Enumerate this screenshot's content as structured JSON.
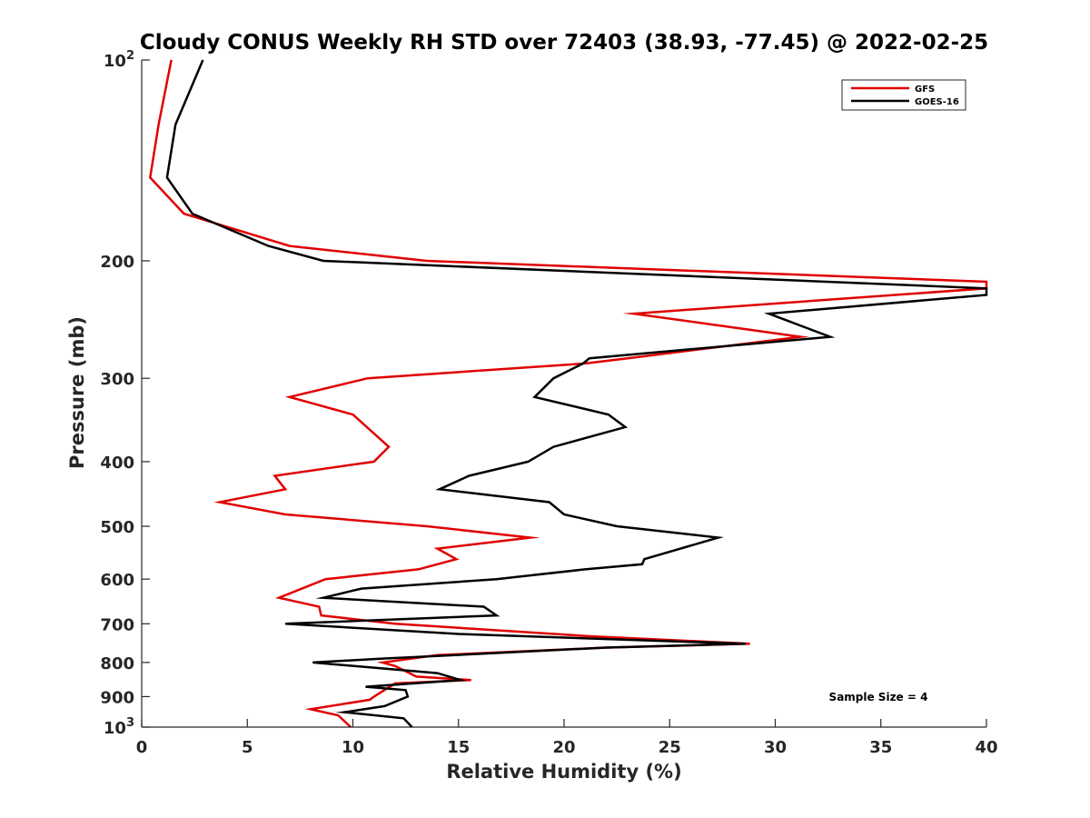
{
  "title": "Cloudy CONUS Weekly RH STD over 72403 (38.93, -77.45) @ 2022-02-25",
  "annotation": "Sample Size = 4",
  "chart_data": {
    "type": "line",
    "xlabel": "Relative Humidity (%)",
    "ylabel": "Pressure (mb)",
    "xlim": [
      0,
      40
    ],
    "ylim": [
      100,
      1000
    ],
    "yscale": "log",
    "y_reversed": true,
    "grid": false,
    "legend_position": "top-right",
    "xticks": [
      0,
      5,
      10,
      15,
      20,
      25,
      30,
      35,
      40
    ],
    "xtick_labels": [
      "0",
      "5",
      "10",
      "15",
      "20",
      "25",
      "30",
      "35",
      "40"
    ],
    "yticks": [
      100,
      200,
      300,
      400,
      500,
      600,
      700,
      800,
      900,
      1000
    ],
    "ytick_labels": [
      {
        "base": "10",
        "exp": "2"
      },
      {
        "base": "200",
        "exp": ""
      },
      {
        "base": "300",
        "exp": ""
      },
      {
        "base": "400",
        "exp": ""
      },
      {
        "base": "500",
        "exp": ""
      },
      {
        "base": "600",
        "exp": ""
      },
      {
        "base": "700",
        "exp": ""
      },
      {
        "base": "800",
        "exp": ""
      },
      {
        "base": "900",
        "exp": ""
      },
      {
        "base": "10",
        "exp": "3"
      }
    ],
    "series": [
      {
        "name": "GFS",
        "color": "#e00000",
        "points": [
          [
            1.4,
            100
          ],
          [
            0.8,
            125
          ],
          [
            0.4,
            150
          ],
          [
            2.0,
            170
          ],
          [
            7.0,
            190
          ],
          [
            13.5,
            200
          ],
          [
            40.0,
            215
          ],
          [
            40.0,
            220
          ],
          [
            23.3,
            240
          ],
          [
            31.2,
            260
          ],
          [
            23.0,
            280
          ],
          [
            21.0,
            285
          ],
          [
            10.7,
            300
          ],
          [
            7.0,
            320
          ],
          [
            10.0,
            340
          ],
          [
            11.7,
            380
          ],
          [
            11.0,
            400
          ],
          [
            6.3,
            420
          ],
          [
            6.8,
            440
          ],
          [
            3.7,
            460
          ],
          [
            6.8,
            480
          ],
          [
            13.5,
            500
          ],
          [
            18.4,
            520
          ],
          [
            14.0,
            540
          ],
          [
            14.9,
            560
          ],
          [
            13.1,
            580
          ],
          [
            8.7,
            600
          ],
          [
            6.5,
            640
          ],
          [
            8.4,
            660
          ],
          [
            8.5,
            680
          ],
          [
            12.0,
            700
          ],
          [
            21.0,
            730
          ],
          [
            28.8,
            750
          ],
          [
            22.0,
            760
          ],
          [
            14.0,
            780
          ],
          [
            11.4,
            800
          ],
          [
            12.0,
            810
          ],
          [
            13.0,
            840
          ],
          [
            15.6,
            850
          ],
          [
            12.0,
            860
          ],
          [
            11.0,
            900
          ],
          [
            10.8,
            910
          ],
          [
            8.0,
            940
          ],
          [
            9.3,
            960
          ],
          [
            9.9,
            1000
          ]
        ]
      },
      {
        "name": "GOES-16",
        "color": "#000000",
        "points": [
          [
            2.9,
            100
          ],
          [
            1.6,
            125
          ],
          [
            1.2,
            150
          ],
          [
            2.4,
            170
          ],
          [
            6.0,
            190
          ],
          [
            8.6,
            200
          ],
          [
            40.0,
            220
          ],
          [
            40.0,
            225
          ],
          [
            29.7,
            240
          ],
          [
            32.6,
            260
          ],
          [
            21.2,
            280
          ],
          [
            20.9,
            285
          ],
          [
            19.5,
            300
          ],
          [
            18.6,
            320
          ],
          [
            22.1,
            340
          ],
          [
            22.9,
            355
          ],
          [
            19.5,
            380
          ],
          [
            18.3,
            400
          ],
          [
            15.5,
            420
          ],
          [
            14.1,
            440
          ],
          [
            19.3,
            460
          ],
          [
            20.0,
            480
          ],
          [
            22.5,
            500
          ],
          [
            27.3,
            520
          ],
          [
            23.8,
            560
          ],
          [
            23.7,
            570
          ],
          [
            21.0,
            580
          ],
          [
            16.8,
            600
          ],
          [
            10.4,
            620
          ],
          [
            8.6,
            640
          ],
          [
            16.2,
            660
          ],
          [
            16.8,
            680
          ],
          [
            6.8,
            700
          ],
          [
            15.0,
            725
          ],
          [
            28.6,
            750
          ],
          [
            22.0,
            760
          ],
          [
            11.2,
            790
          ],
          [
            8.1,
            800
          ],
          [
            14.0,
            830
          ],
          [
            15.1,
            850
          ],
          [
            10.6,
            870
          ],
          [
            12.5,
            880
          ],
          [
            12.6,
            900
          ],
          [
            11.5,
            930
          ],
          [
            9.6,
            950
          ],
          [
            12.4,
            970
          ],
          [
            12.8,
            1000
          ]
        ]
      }
    ]
  }
}
